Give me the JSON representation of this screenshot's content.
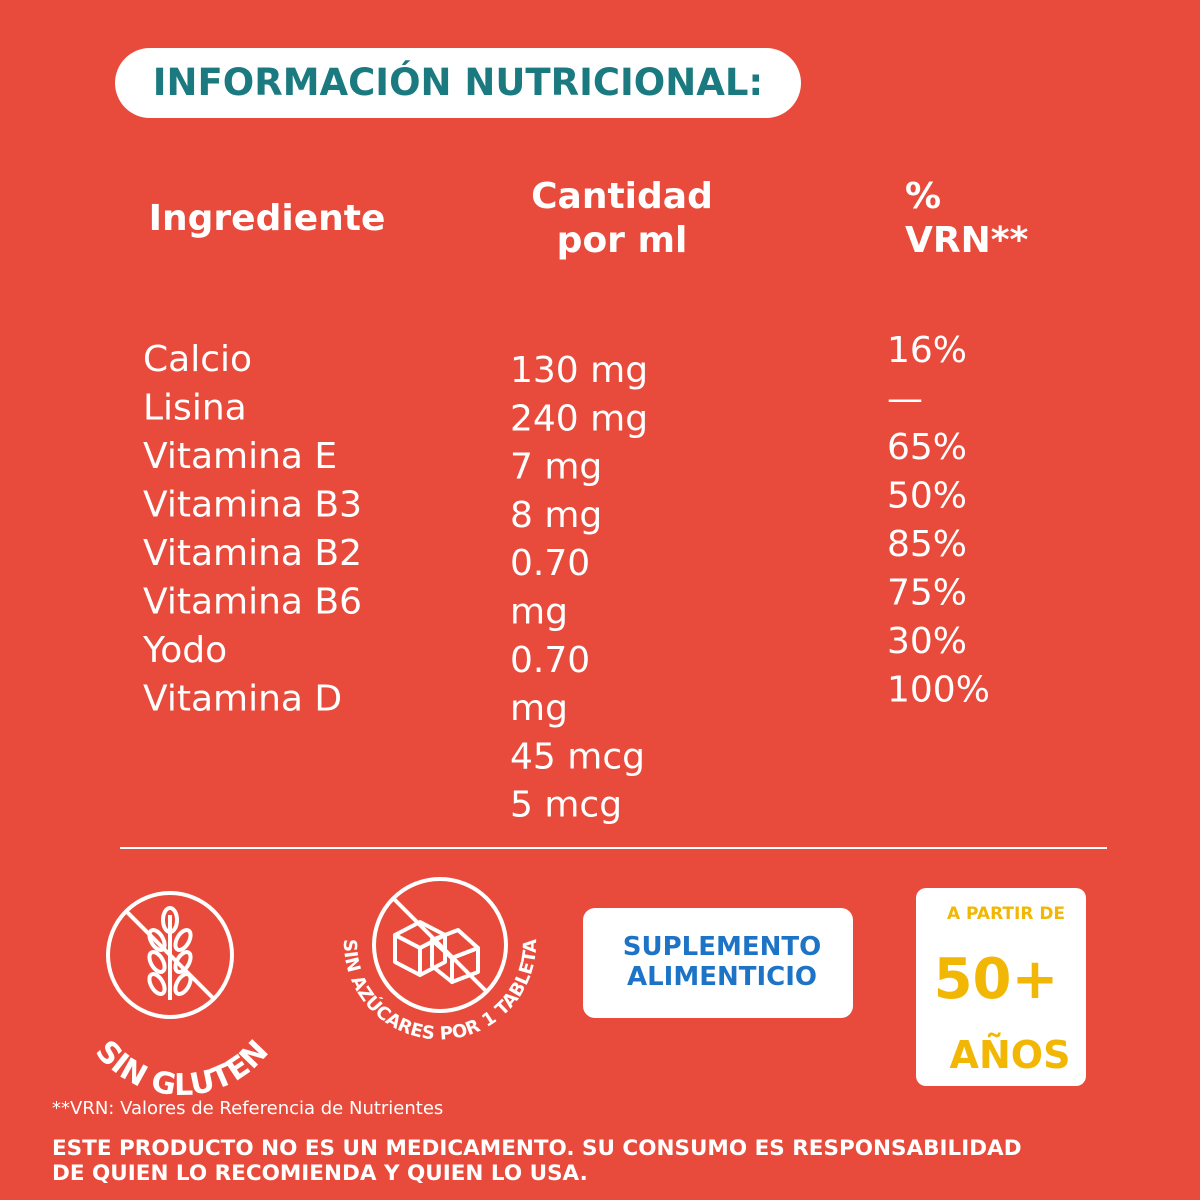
{
  "header": {
    "title": "INFORMACIÓN NUTRICIONAL:"
  },
  "table": {
    "headers": {
      "ingredient": [
        "Ingrediente"
      ],
      "quantity": [
        "Cantidad",
        "por ml"
      ],
      "vrn": [
        "%",
        "VRN**"
      ]
    },
    "ingredients": [
      "Calcio",
      "Lisina",
      "Vitamina E",
      "Vitamina B3",
      "Vitamina B2",
      "Vitamina B6",
      "Yodo",
      "Vitamina D"
    ],
    "quantity_lines": [
      "130 mg",
      "240 mg",
      "7 mg",
      "8 mg",
      "0.70",
      "mg",
      "0.70",
      "mg",
      "45 mcg",
      "5 mcg"
    ],
    "vrn": [
      "16%",
      "—",
      "65%",
      "50%",
      "85%",
      "75%",
      "30%",
      "100%"
    ]
  },
  "badges": {
    "gluten": "SIN GLUTEN",
    "sugar": "SIN AZÚCARES POR 1 TABLETA",
    "supplement": [
      "SUPLEMENTO",
      "ALIMENTICIO"
    ],
    "age": {
      "top": "A PARTIR DE",
      "number": "50+",
      "bottom": "AÑOS"
    }
  },
  "footnote": "**VRN: Valores de Referencia de Nutrientes",
  "disclaimer": [
    "ESTE PRODUCTO NO ES UN MEDICAMENTO. SU CONSUMO ES RESPONSABILIDAD",
    "DE QUIEN LO RECOMIENDA Y QUIEN LO USA."
  ]
}
